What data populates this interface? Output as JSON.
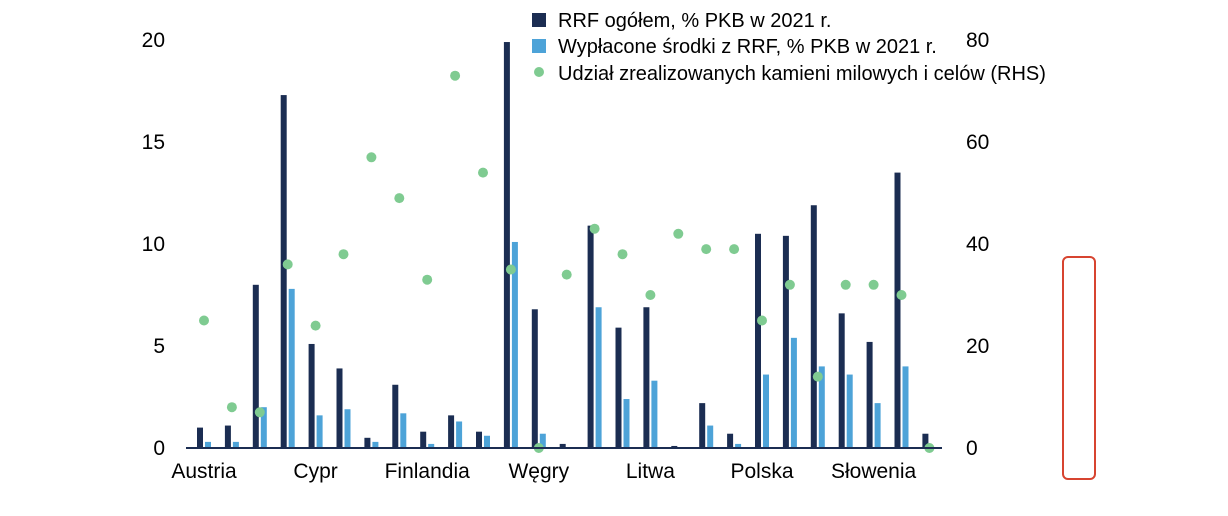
{
  "chart_data": {
    "type": "bar",
    "categories": [
      "Austria",
      "",
      "",
      "",
      "Cypr",
      "",
      "",
      "",
      "Finlandia",
      "",
      "",
      "",
      "Węgry",
      "",
      "",
      "",
      "Litwa",
      "",
      "",
      "",
      "Polska",
      "",
      "",
      "",
      "Słowenia",
      "",
      ""
    ],
    "series": [
      {
        "name": "RRF ogółem, % PKB w 2021 r.",
        "type": "bar",
        "axis": "left",
        "color": "#1b2d52",
        "values": [
          1.0,
          1.1,
          8.0,
          17.3,
          5.1,
          3.9,
          0.5,
          3.1,
          0.8,
          1.6,
          0.8,
          19.9,
          6.8,
          0.2,
          10.9,
          5.9,
          6.9,
          0.1,
          2.2,
          0.7,
          10.5,
          10.4,
          11.9,
          6.6,
          5.2,
          13.5,
          0.7
        ]
      },
      {
        "name": "Wypłacone środki z RRF, % PKB w 2021 r.",
        "type": "bar",
        "axis": "left",
        "color": "#4da3d8",
        "values": [
          0.3,
          0.3,
          2.0,
          7.8,
          1.6,
          1.9,
          0.3,
          1.7,
          0.2,
          1.3,
          0.6,
          10.1,
          0.7,
          0.0,
          6.9,
          2.4,
          3.3,
          0.0,
          1.1,
          0.2,
          3.6,
          5.4,
          4.0,
          3.6,
          2.2,
          4.0,
          0.0
        ]
      },
      {
        "name": "Udział zrealizowanych kamieni milowych i celów (RHS)",
        "type": "scatter",
        "axis": "right",
        "color": "#7fcb91",
        "values": [
          25,
          8,
          7,
          36,
          24,
          38,
          57,
          49,
          33,
          73,
          54,
          35,
          0,
          34,
          43,
          38,
          30,
          42,
          39,
          39,
          25,
          32,
          14,
          32,
          32,
          30,
          0
        ]
      }
    ],
    "ylim": [
      0,
      20
    ],
    "y2lim": [
      0,
      80
    ],
    "yticks": [
      0,
      5,
      10,
      15,
      20
    ],
    "y2ticks": [
      0,
      20,
      40,
      60,
      80
    ],
    "legend": "top-center",
    "grid": false
  },
  "colors": {
    "axis_line": "#1b2d52",
    "annotation_box": "#d74430"
  }
}
